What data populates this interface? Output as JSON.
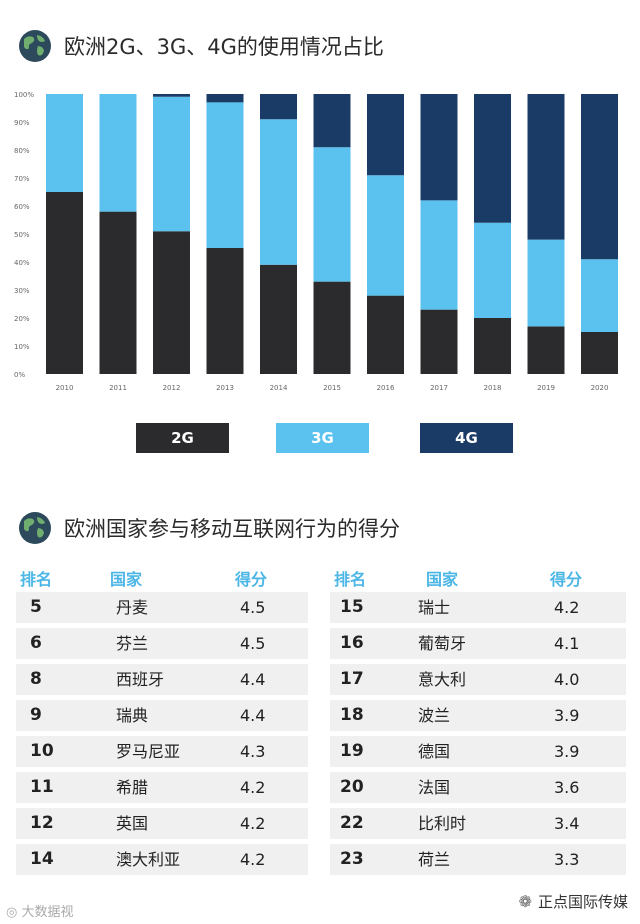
{
  "section1": {
    "title": "欧洲2G、3G、4G的使用情况占比"
  },
  "chart_data": {
    "type": "area",
    "x": [
      "2010",
      "2011",
      "2012",
      "2013",
      "2014",
      "2015",
      "2016",
      "2017",
      "2018",
      "2019",
      "2020"
    ],
    "series": [
      {
        "name": "2G",
        "values": [
          65,
          58,
          51,
          45,
          39,
          33,
          28,
          23,
          20,
          17,
          15
        ],
        "color": "#2b2b2d"
      },
      {
        "name": "3G",
        "values": [
          35,
          42,
          48,
          52,
          52,
          48,
          43,
          39,
          34,
          31,
          26
        ],
        "color": "#5bc2f0"
      },
      {
        "name": "4G",
        "values": [
          0,
          0,
          1,
          3,
          9,
          19,
          29,
          38,
          46,
          52,
          59
        ],
        "color": "#1b3b67"
      }
    ],
    "y_ticks": [
      "0%",
      "10%",
      "20%",
      "30%",
      "40%",
      "50%",
      "60%",
      "70%",
      "80%",
      "90%",
      "100%"
    ],
    "ylim": [
      0,
      100
    ],
    "stacked": true,
    "legend_position": "bottom"
  },
  "section2": {
    "title": "欧洲国家参与移动互联网行为的得分"
  },
  "table_headers": {
    "rank": "排名",
    "country": "国家",
    "score": "得分"
  },
  "table_left": [
    {
      "rank": "5",
      "country": "丹麦",
      "score": "4.5"
    },
    {
      "rank": "6",
      "country": "芬兰",
      "score": "4.5"
    },
    {
      "rank": "8",
      "country": "西班牙",
      "score": "4.4"
    },
    {
      "rank": "9",
      "country": "瑞典",
      "score": "4.4"
    },
    {
      "rank": "10",
      "country": "罗马尼亚",
      "score": "4.3"
    },
    {
      "rank": "11",
      "country": "希腊",
      "score": "4.2"
    },
    {
      "rank": "12",
      "country": "英国",
      "score": "4.2"
    },
    {
      "rank": "14",
      "country": "澳大利亚",
      "score": "4.2"
    }
  ],
  "table_right": [
    {
      "rank": "15",
      "country": "瑞士",
      "score": "4.2"
    },
    {
      "rank": "16",
      "country": "葡萄牙",
      "score": "4.1"
    },
    {
      "rank": "17",
      "country": "意大利",
      "score": "4.0"
    },
    {
      "rank": "18",
      "country": "波兰",
      "score": "3.9"
    },
    {
      "rank": "19",
      "country": "德国",
      "score": "3.9"
    },
    {
      "rank": "20",
      "country": "法国",
      "score": "3.6"
    },
    {
      "rank": "22",
      "country": "比利时",
      "score": "3.4"
    },
    {
      "rank": "23",
      "country": "荷兰",
      "score": "3.3"
    }
  ],
  "watermark_left": "大数据视",
  "watermark_right": "正点国际传媒"
}
